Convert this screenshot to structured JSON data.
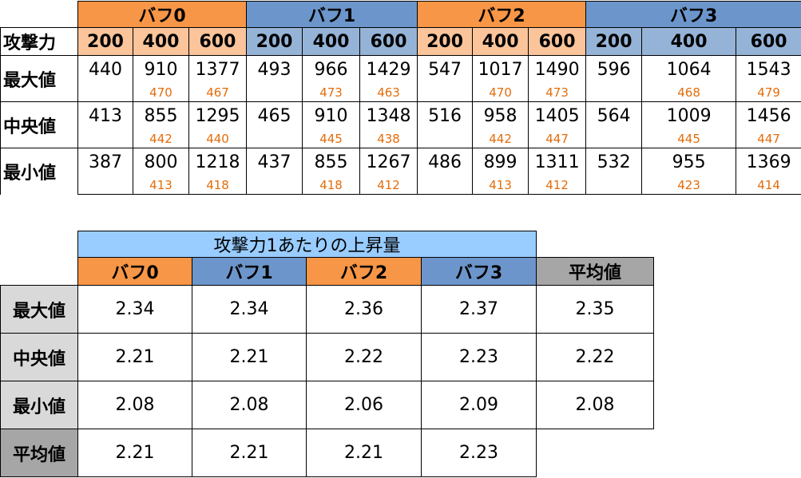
{
  "top_table": {
    "buffs": [
      "バフ0",
      "バフ1",
      "バフ2",
      "バフ3"
    ],
    "attack_label": "攻撃力",
    "attack_values": [
      "200",
      "400",
      "600"
    ],
    "rows": [
      {
        "label": "最大値",
        "values": [
          [
            "440",
            "910",
            "1377"
          ],
          [
            "493",
            "966",
            "1429"
          ],
          [
            "547",
            "1017",
            "1490"
          ],
          [
            "596",
            "1064",
            "1543"
          ]
        ],
        "diffs": [
          [
            "",
            "470",
            "467"
          ],
          [
            "",
            "473",
            "463"
          ],
          [
            "",
            "470",
            "473"
          ],
          [
            "",
            "468",
            "479"
          ]
        ]
      },
      {
        "label": "中央値",
        "values": [
          [
            "413",
            "855",
            "1295"
          ],
          [
            "465",
            "910",
            "1348"
          ],
          [
            "516",
            "958",
            "1405"
          ],
          [
            "564",
            "1009",
            "1456"
          ]
        ],
        "diffs": [
          [
            "",
            "442",
            "440"
          ],
          [
            "",
            "445",
            "438"
          ],
          [
            "",
            "442",
            "447"
          ],
          [
            "",
            "445",
            "447"
          ]
        ]
      },
      {
        "label": "最小値",
        "values": [
          [
            "387",
            "800",
            "1218"
          ],
          [
            "437",
            "855",
            "1267"
          ],
          [
            "486",
            "899",
            "1311"
          ],
          [
            "532",
            "955",
            "1369"
          ]
        ],
        "diffs": [
          [
            "",
            "413",
            "418"
          ],
          [
            "",
            "418",
            "412"
          ],
          [
            "",
            "413",
            "412"
          ],
          [
            "",
            "423",
            "414"
          ]
        ]
      }
    ]
  },
  "bottom_table": {
    "title": "攻撃力1あたりの上昇量",
    "columns": [
      "バフ0",
      "バフ1",
      "バフ2",
      "バフ3",
      "平均値"
    ],
    "rows": [
      {
        "label": "最大値",
        "values": [
          "2.34",
          "2.34",
          "2.36",
          "2.37",
          "2.35"
        ]
      },
      {
        "label": "中央値",
        "values": [
          "2.21",
          "2.21",
          "2.22",
          "2.23",
          "2.22"
        ]
      },
      {
        "label": "最小値",
        "values": [
          "2.08",
          "2.08",
          "2.06",
          "2.09",
          "2.08"
        ]
      },
      {
        "label": "平均値",
        "values": [
          "2.21",
          "2.21",
          "2.21",
          "2.23",
          ""
        ]
      }
    ]
  },
  "colors": {
    "buff_even": "#f79646",
    "buff_even_light": "#fbc49a",
    "buff_odd": "#6c96cb",
    "buff_odd_light": "#95b3d7",
    "diff_text": "#e46c0a",
    "title_bg": "#99ccff",
    "label_bg": "#d9d9d9",
    "avg_bg": "#a6a6a6"
  }
}
